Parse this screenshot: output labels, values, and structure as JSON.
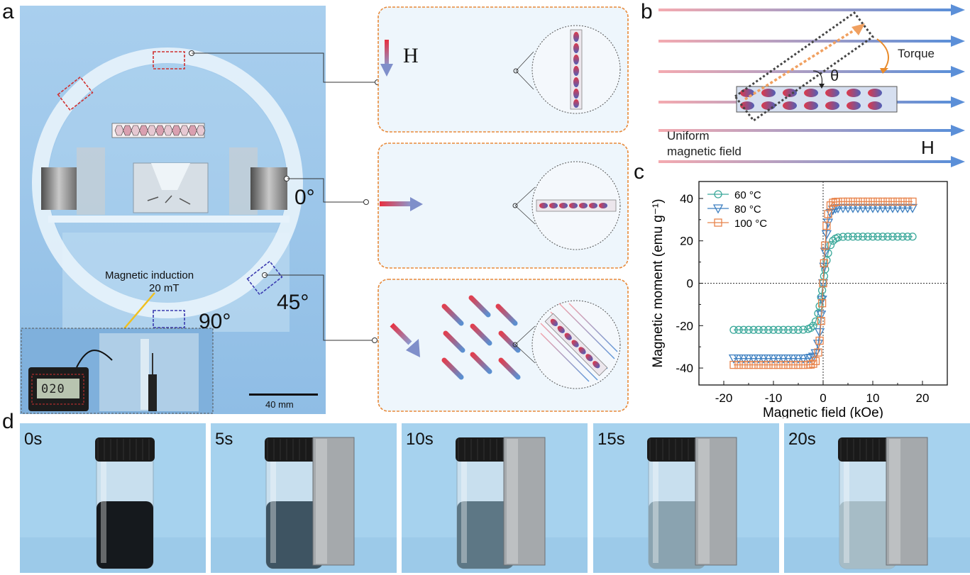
{
  "panel_labels": {
    "a": "a",
    "b": "b",
    "c": "c",
    "d": "d"
  },
  "panel_a": {
    "magnetic_induction_label": "Magnetic induction",
    "magnetic_induction_value": "20 mT",
    "meter_reading": "020",
    "angle_0": "0°",
    "angle_45": "45°",
    "angle_90": "90°",
    "scale_bar": "40 mm",
    "field_label": "H"
  },
  "panel_b": {
    "torque_label": "Torque",
    "theta_label": "θ",
    "uniform_label_line1": "Uniform",
    "uniform_label_line2": "magnetic field",
    "field_label": "H"
  },
  "chart_data": {
    "type": "scatter",
    "xlabel": "Magnetic field (kOe)",
    "ylabel": "Magnetic moment (emu g⁻¹)",
    "xlim": [
      -25,
      25
    ],
    "ylim": [
      -48,
      48
    ],
    "xticks": [
      -20,
      -10,
      0,
      10,
      20
    ],
    "yticks": [
      -40,
      -20,
      0,
      20,
      40
    ],
    "legend_position": "top-left",
    "series": [
      {
        "name": "60 °C",
        "marker": "circle",
        "color": "#3aa89a",
        "Ms": 22
      },
      {
        "name": "80 °C",
        "marker": "triangle-down",
        "color": "#3d7fc0",
        "Ms": 35.5
      },
      {
        "name": "100 °C",
        "marker": "square",
        "color": "#e8834a",
        "Ms": 38.5
      }
    ],
    "x_samples": [
      -18,
      -17,
      -16,
      -15,
      -14,
      -13,
      -12,
      -11,
      -10,
      -9,
      -8,
      -7,
      -6,
      -5,
      -4,
      -3,
      -2.5,
      -2,
      -1.5,
      -1,
      -0.7,
      -0.4,
      -0.2,
      0,
      0.2,
      0.4,
      0.7,
      1,
      1.5,
      2,
      2.5,
      3,
      4,
      5,
      6,
      7,
      8,
      9,
      10,
      11,
      12,
      13,
      14,
      15,
      16,
      17,
      18
    ]
  },
  "panel_d": {
    "frames": [
      {
        "time": "0s",
        "liquid_color": "#15191d",
        "magnet": false
      },
      {
        "time": "5s",
        "liquid_color": "#3e5462",
        "magnet": true
      },
      {
        "time": "10s",
        "liquid_color": "#5d7785",
        "magnet": true
      },
      {
        "time": "15s",
        "liquid_color": "#8aa3b0",
        "magnet": true
      },
      {
        "time": "20s",
        "liquid_color": "#a6bcc6",
        "magnet": true
      }
    ]
  }
}
